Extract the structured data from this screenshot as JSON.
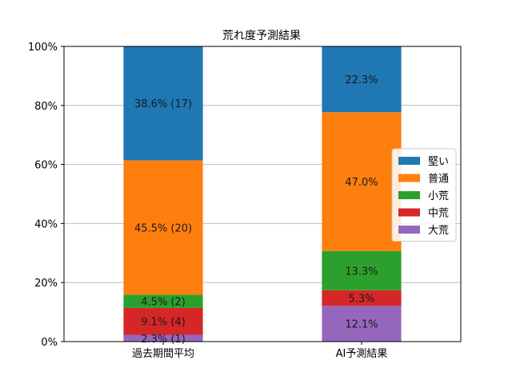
{
  "chart_data": {
    "type": "bar",
    "stacked": true,
    "title": "荒れ度予測結果",
    "xlabel": "",
    "ylabel": "",
    "ylim": [
      0,
      100
    ],
    "y_ticks": [
      "0%",
      "20%",
      "40%",
      "60%",
      "80%",
      "100%"
    ],
    "grid": "horizontal",
    "legend_position": "right",
    "categories": [
      "過去期間平均",
      "AI予測結果"
    ],
    "series": [
      {
        "name": "大荒",
        "color": "#9467bd",
        "values": [
          2.3,
          12.1
        ],
        "labels": [
          "2.3% (1)",
          "12.1%"
        ]
      },
      {
        "name": "中荒",
        "color": "#d62728",
        "values": [
          9.1,
          5.3
        ],
        "labels": [
          "9.1% (4)",
          "5.3%"
        ]
      },
      {
        "name": "小荒",
        "color": "#2ca02c",
        "values": [
          4.5,
          13.3
        ],
        "labels": [
          "4.5% (2)",
          "13.3%"
        ]
      },
      {
        "name": "普通",
        "color": "#ff7f0e",
        "values": [
          45.5,
          47.0
        ],
        "labels": [
          "45.5% (20)",
          "47.0%"
        ]
      },
      {
        "name": "堅い",
        "color": "#1f77b4",
        "values": [
          38.6,
          22.3
        ],
        "labels": [
          "38.6% (17)",
          "22.3%"
        ]
      }
    ],
    "legend_order": [
      "堅い",
      "普通",
      "小荒",
      "中荒",
      "大荒"
    ]
  }
}
